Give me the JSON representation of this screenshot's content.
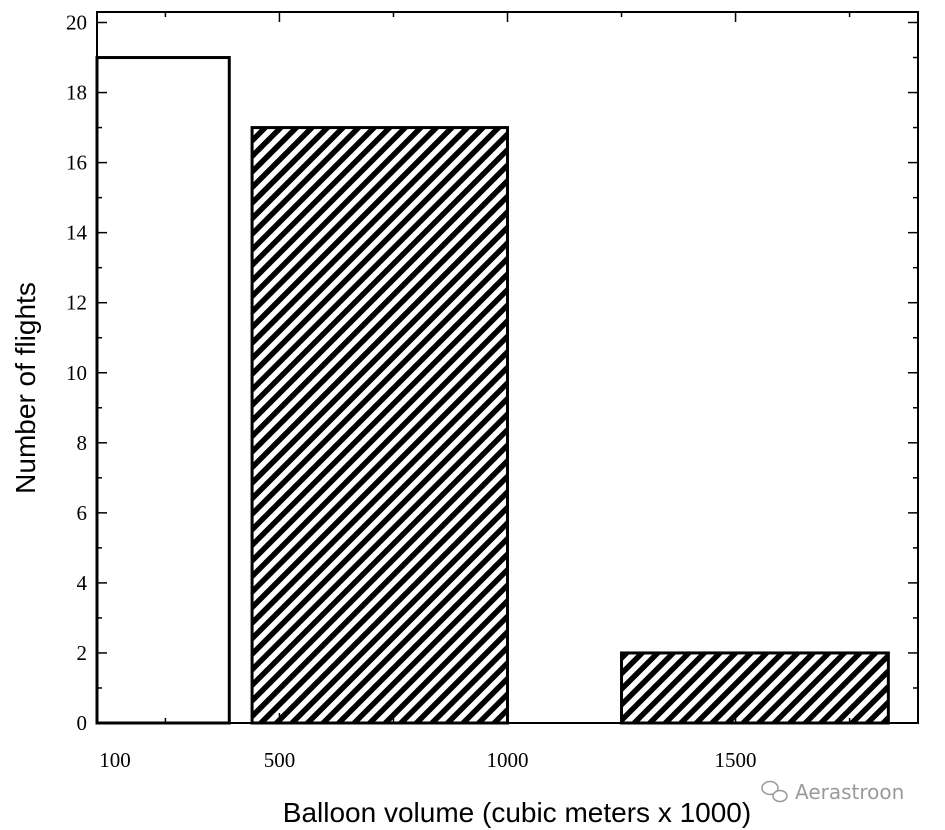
{
  "chart_data": {
    "type": "bar",
    "title": "",
    "xlabel": "Balloon volume (cubic meters x 1000)",
    "ylabel": "Number of flights",
    "xlim": [
      100,
      1900
    ],
    "ylim": [
      0,
      20.3
    ],
    "x_ticks": [
      100,
      500,
      1000,
      1500
    ],
    "y_ticks": [
      0,
      2,
      4,
      6,
      8,
      10,
      12,
      14,
      16,
      18,
      20
    ],
    "grid": false,
    "bars": [
      {
        "x_start": 100,
        "x_end": 390,
        "value": 19,
        "pattern": "none"
      },
      {
        "x_start": 440,
        "x_end": 1000,
        "value": 17,
        "pattern": "diagonal-hatch"
      },
      {
        "x_start": 1250,
        "x_end": 1835,
        "value": 2,
        "pattern": "diagonal-hatch"
      }
    ]
  },
  "watermark": {
    "icon": "wechat-icon",
    "text": "Aerastroon"
  }
}
